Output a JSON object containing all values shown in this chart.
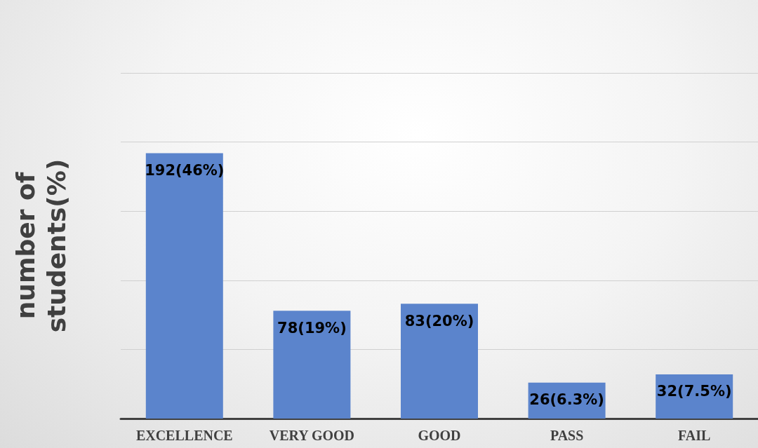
{
  "chart_data": {
    "type": "bar",
    "ylabel": "number of students(%)",
    "categories": [
      "EXCELLENCE",
      "VERY GOOD",
      "GOOD",
      "PASS",
      "FAIL"
    ],
    "values": [
      192,
      78,
      83,
      26,
      32
    ],
    "value_labels": [
      "192(46%)",
      "78(19%)",
      "83(20%)",
      "26(6.3%)",
      "32(7.5%)"
    ],
    "color": "#5b84cc",
    "ylim": [
      0,
      250
    ],
    "yticks": [
      {
        "value": 0,
        "label": null
      },
      {
        "value": 50,
        "label": null
      },
      {
        "value": 100,
        "label": null
      },
      {
        "value": 150,
        "label": null
      },
      {
        "value": 200,
        "label": null
      },
      {
        "value": 250,
        "label": null
      }
    ],
    "tick_labels": "x",
    "grid": "y"
  }
}
